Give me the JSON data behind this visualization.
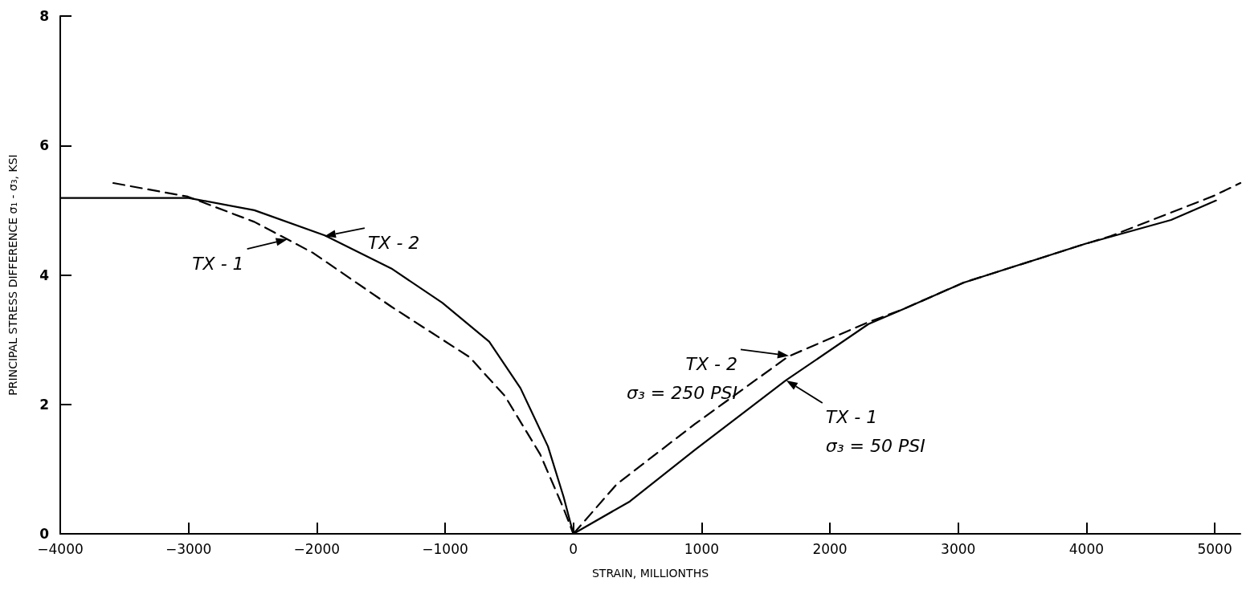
{
  "chart_data": {
    "type": "line",
    "xlabel": "STRAIN, MILLIONTHS",
    "ylabel": "PRINCIPAL STRESS DIFFERENCE σ₁ - σ₃, KSI",
    "xlim": [
      -4000,
      5200
    ],
    "xticks": [
      -4000,
      -3000,
      -2000,
      -1000,
      0,
      1000,
      2000,
      3000,
      4000,
      5000
    ],
    "ylim": [
      0,
      8
    ],
    "yticks": [
      0,
      2,
      4,
      6,
      8
    ],
    "grid": false,
    "marker": "none",
    "series": [
      {
        "color": "#000000",
        "line_style": "solid",
        "x": [
          -4000,
          -3000,
          -2487,
          -1938,
          -1419,
          -1022,
          -656,
          -412,
          -198,
          -76,
          0
        ],
        "values": [
          5.19,
          5.19,
          5.0,
          4.61,
          4.1,
          3.57,
          2.97,
          2.25,
          1.35,
          0.57,
          0
        ]
      },
      {
        "color": "#000000",
        "line_style": "dashed",
        "x": [
          -3586,
          -3006,
          -2487,
          -2029,
          -1419,
          -809,
          -534,
          -259,
          -76,
          0
        ],
        "values": [
          5.42,
          5.21,
          4.82,
          4.34,
          3.51,
          2.73,
          2.13,
          1.23,
          0.39,
          0
        ]
      },
      {
        "color": "#000000",
        "line_style": "dashed",
        "x": [
          0,
          340,
          950,
          1675,
          2300,
          2570,
          3040,
          3990,
          4190,
          4990,
          5200
        ],
        "values": [
          0,
          0.77,
          1.7,
          2.74,
          3.27,
          3.47,
          3.88,
          4.48,
          4.6,
          5.22,
          5.42
        ]
      },
      {
        "color": "#000000",
        "line_style": "solid",
        "x": [
          0,
          440,
          950,
          1656,
          2300,
          2570,
          3040,
          3990,
          4660,
          5010
        ],
        "values": [
          0,
          0.5,
          1.3,
          2.37,
          3.24,
          3.47,
          3.88,
          4.48,
          4.85,
          5.15
        ]
      }
    ],
    "annotations": [
      {
        "text": "TX - 2",
        "x": -1940,
        "y": 4.6
      },
      {
        "text": "TX - 1",
        "x": -2230,
        "y": 4.55
      },
      {
        "text": "TX - 2\nσ₃ = 250 PSI",
        "x": 1680,
        "y": 2.75
      },
      {
        "text": "TX - 1\nσ₃ = 50 PSI",
        "x": 1660,
        "y": 2.37
      }
    ]
  }
}
